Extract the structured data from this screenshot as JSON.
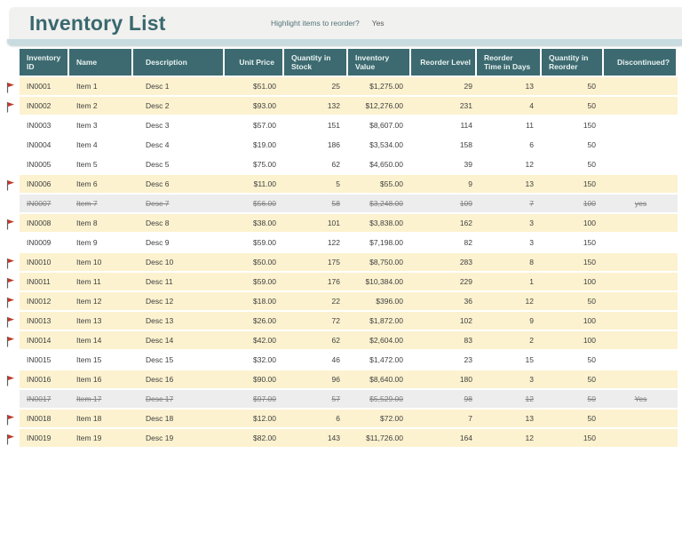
{
  "header": {
    "title": "Inventory List",
    "highlight_label": "Highlight items to reorder?",
    "highlight_value": "Yes"
  },
  "colors": {
    "accent_teal": "#3C6A70",
    "title_text": "#39686E",
    "accent_strip": "#C8DCE0",
    "reorder_highlight": "#FCF2CF",
    "discontinued_bg": "#EDEDED",
    "flag_red": "#C0392B"
  },
  "table": {
    "columns": [
      {
        "key": "id",
        "label": "Inventory ID"
      },
      {
        "key": "name",
        "label": "Name"
      },
      {
        "key": "desc",
        "label": "Description"
      },
      {
        "key": "price",
        "label": "Unit Price"
      },
      {
        "key": "qty",
        "label": "Quantity in Stock"
      },
      {
        "key": "value",
        "label": "Inventory Value"
      },
      {
        "key": "level",
        "label": "Reorder Level"
      },
      {
        "key": "time",
        "label": "Reorder Time in Days"
      },
      {
        "key": "reorder",
        "label": "Quantity in Reorder"
      },
      {
        "key": "disc",
        "label": "Discontinued?"
      }
    ],
    "rows": [
      {
        "id": "IN0001",
        "name": "Item 1",
        "desc": "Desc 1",
        "price": "$51.00",
        "qty": "25",
        "value": "$1,275.00",
        "level": "29",
        "time": "13",
        "reorder": "50",
        "disc": "",
        "flagged": true,
        "discontinued": false
      },
      {
        "id": "IN0002",
        "name": "Item 2",
        "desc": "Desc 2",
        "price": "$93.00",
        "qty": "132",
        "value": "$12,276.00",
        "level": "231",
        "time": "4",
        "reorder": "50",
        "disc": "",
        "flagged": true,
        "discontinued": false
      },
      {
        "id": "IN0003",
        "name": "Item 3",
        "desc": "Desc 3",
        "price": "$57.00",
        "qty": "151",
        "value": "$8,607.00",
        "level": "114",
        "time": "11",
        "reorder": "150",
        "disc": "",
        "flagged": false,
        "discontinued": false
      },
      {
        "id": "IN0004",
        "name": "Item 4",
        "desc": "Desc 4",
        "price": "$19.00",
        "qty": "186",
        "value": "$3,534.00",
        "level": "158",
        "time": "6",
        "reorder": "50",
        "disc": "",
        "flagged": false,
        "discontinued": false
      },
      {
        "id": "IN0005",
        "name": "Item 5",
        "desc": "Desc 5",
        "price": "$75.00",
        "qty": "62",
        "value": "$4,650.00",
        "level": "39",
        "time": "12",
        "reorder": "50",
        "disc": "",
        "flagged": false,
        "discontinued": false
      },
      {
        "id": "IN0006",
        "name": "Item 6",
        "desc": "Desc 6",
        "price": "$11.00",
        "qty": "5",
        "value": "$55.00",
        "level": "9",
        "time": "13",
        "reorder": "150",
        "disc": "",
        "flagged": true,
        "discontinued": false
      },
      {
        "id": "IN0007",
        "name": "Item 7",
        "desc": "Desc 7",
        "price": "$56.00",
        "qty": "58",
        "value": "$3,248.00",
        "level": "109",
        "time": "7",
        "reorder": "100",
        "disc": "yes",
        "flagged": false,
        "discontinued": true
      },
      {
        "id": "IN0008",
        "name": "Item 8",
        "desc": "Desc 8",
        "price": "$38.00",
        "qty": "101",
        "value": "$3,838.00",
        "level": "162",
        "time": "3",
        "reorder": "100",
        "disc": "",
        "flagged": true,
        "discontinued": false
      },
      {
        "id": "IN0009",
        "name": "Item 9",
        "desc": "Desc 9",
        "price": "$59.00",
        "qty": "122",
        "value": "$7,198.00",
        "level": "82",
        "time": "3",
        "reorder": "150",
        "disc": "",
        "flagged": false,
        "discontinued": false
      },
      {
        "id": "IN0010",
        "name": "Item 10",
        "desc": "Desc 10",
        "price": "$50.00",
        "qty": "175",
        "value": "$8,750.00",
        "level": "283",
        "time": "8",
        "reorder": "150",
        "disc": "",
        "flagged": true,
        "discontinued": false
      },
      {
        "id": "IN0011",
        "name": "Item 11",
        "desc": "Desc 11",
        "price": "$59.00",
        "qty": "176",
        "value": "$10,384.00",
        "level": "229",
        "time": "1",
        "reorder": "100",
        "disc": "",
        "flagged": true,
        "discontinued": false
      },
      {
        "id": "IN0012",
        "name": "Item 12",
        "desc": "Desc 12",
        "price": "$18.00",
        "qty": "22",
        "value": "$396.00",
        "level": "36",
        "time": "12",
        "reorder": "50",
        "disc": "",
        "flagged": true,
        "discontinued": false
      },
      {
        "id": "IN0013",
        "name": "Item 13",
        "desc": "Desc 13",
        "price": "$26.00",
        "qty": "72",
        "value": "$1,872.00",
        "level": "102",
        "time": "9",
        "reorder": "100",
        "disc": "",
        "flagged": true,
        "discontinued": false
      },
      {
        "id": "IN0014",
        "name": "Item 14",
        "desc": "Desc 14",
        "price": "$42.00",
        "qty": "62",
        "value": "$2,604.00",
        "level": "83",
        "time": "2",
        "reorder": "100",
        "disc": "",
        "flagged": true,
        "discontinued": false
      },
      {
        "id": "IN0015",
        "name": "Item 15",
        "desc": "Desc 15",
        "price": "$32.00",
        "qty": "46",
        "value": "$1,472.00",
        "level": "23",
        "time": "15",
        "reorder": "50",
        "disc": "",
        "flagged": false,
        "discontinued": false
      },
      {
        "id": "IN0016",
        "name": "Item 16",
        "desc": "Desc 16",
        "price": "$90.00",
        "qty": "96",
        "value": "$8,640.00",
        "level": "180",
        "time": "3",
        "reorder": "50",
        "disc": "",
        "flagged": true,
        "discontinued": false
      },
      {
        "id": "IN0017",
        "name": "Item 17",
        "desc": "Desc 17",
        "price": "$97.00",
        "qty": "57",
        "value": "$5,529.00",
        "level": "98",
        "time": "12",
        "reorder": "50",
        "disc": "Yes",
        "flagged": false,
        "discontinued": true
      },
      {
        "id": "IN0018",
        "name": "Item 18",
        "desc": "Desc 18",
        "price": "$12.00",
        "qty": "6",
        "value": "$72.00",
        "level": "7",
        "time": "13",
        "reorder": "50",
        "disc": "",
        "flagged": true,
        "discontinued": false
      },
      {
        "id": "IN0019",
        "name": "Item 19",
        "desc": "Desc 19",
        "price": "$82.00",
        "qty": "143",
        "value": "$11,726.00",
        "level": "164",
        "time": "12",
        "reorder": "150",
        "disc": "",
        "flagged": true,
        "discontinued": false
      }
    ]
  }
}
